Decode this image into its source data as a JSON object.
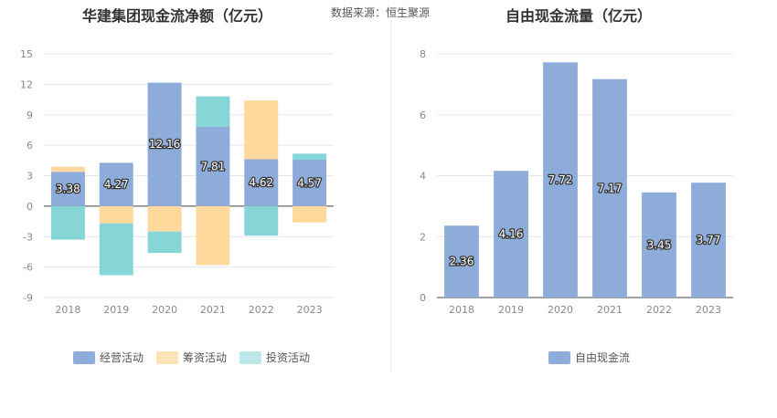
{
  "header": {
    "left_title": "华建集团现金流净额（亿元）",
    "source": "数据来源：恒生聚源",
    "right_title": "自由现金流量（亿元）"
  },
  "chart_data": [
    {
      "type": "bar",
      "stacked": true,
      "title": "华建集团现金流净额（亿元）",
      "categories": [
        "2018",
        "2019",
        "2020",
        "2021",
        "2022",
        "2023"
      ],
      "ylim": [
        -9,
        15
      ],
      "yticks": [
        -9,
        -6,
        -3,
        0,
        3,
        6,
        9,
        12,
        15
      ],
      "grid": true,
      "legend_position": "bottom",
      "series": [
        {
          "name": "经营活动",
          "color": "#8eacda",
          "values": [
            3.38,
            4.27,
            12.16,
            7.81,
            4.62,
            4.57
          ],
          "labels": [
            "3.38",
            "4.27",
            "12.16",
            "7.81",
            "4.62",
            "4.57"
          ]
        },
        {
          "name": "筹资活动",
          "color": "#ffd89b",
          "values": [
            0.5,
            -1.7,
            -2.5,
            -5.8,
            5.8,
            -1.6
          ]
        },
        {
          "name": "投资活动",
          "color": "#86d6d8",
          "values": [
            -3.3,
            -5.1,
            -2.1,
            3.0,
            -2.9,
            0.6
          ]
        }
      ]
    },
    {
      "type": "bar",
      "title": "自由现金流量（亿元）",
      "categories": [
        "2018",
        "2019",
        "2020",
        "2021",
        "2022",
        "2023"
      ],
      "ylim": [
        0,
        8
      ],
      "yticks": [
        0,
        2,
        4,
        6,
        8
      ],
      "grid": true,
      "legend_position": "bottom",
      "series": [
        {
          "name": "自由现金流",
          "color": "#8eacda",
          "values": [
            2.36,
            4.16,
            7.72,
            7.17,
            3.45,
            3.77
          ],
          "labels": [
            "2.36",
            "4.16",
            "7.72",
            "7.17",
            "3.45",
            "3.77"
          ]
        }
      ]
    }
  ]
}
